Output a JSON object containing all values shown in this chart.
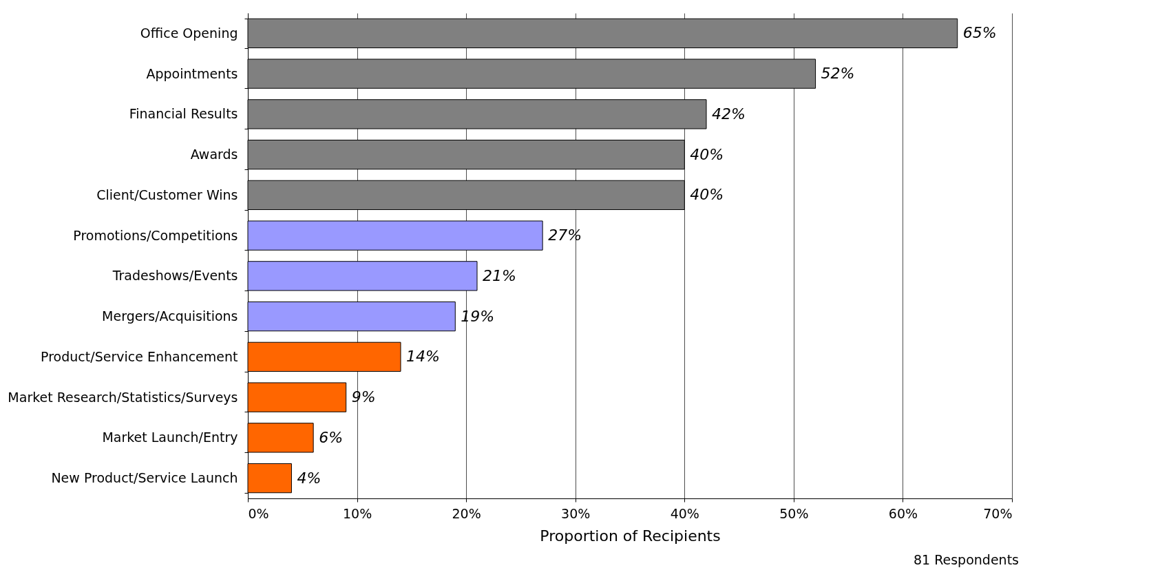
{
  "chart_data": {
    "type": "bar",
    "orientation": "horizontal",
    "xlabel": "Proportion of Recipients",
    "categories": [
      "Office Opening",
      "Appointments",
      "Financial Results",
      "Awards",
      "Client/Customer Wins",
      "Promotions/Competitions",
      "Tradeshows/Events",
      "Mergers/Acquisitions",
      "Product/Service Enhancement",
      "Market Research/Statistics/Surveys",
      "Market Launch/Entry",
      "New Product/Service Launch"
    ],
    "values": [
      65,
      52,
      42,
      40,
      40,
      27,
      21,
      19,
      14,
      9,
      6,
      4
    ],
    "value_labels": [
      "65%",
      "52%",
      "42%",
      "40%",
      "40%",
      "27%",
      "21%",
      "19%",
      "14%",
      "9%",
      "6%",
      "4%"
    ],
    "colors": [
      "#808080",
      "#808080",
      "#808080",
      "#808080",
      "#808080",
      "#9999ff",
      "#9999ff",
      "#9999ff",
      "#ff6600",
      "#ff6600",
      "#ff6600",
      "#ff6600"
    ],
    "xlim": [
      0,
      70
    ],
    "xticks": [
      {
        "value": 0,
        "label": "0%"
      },
      {
        "value": 10,
        "label": "10%"
      },
      {
        "value": 20,
        "label": "20%"
      },
      {
        "value": 30,
        "label": "30%"
      },
      {
        "value": 40,
        "label": "40%"
      },
      {
        "value": 50,
        "label": "50%"
      },
      {
        "value": 60,
        "label": "60%"
      },
      {
        "value": 70,
        "label": "70%"
      }
    ],
    "grid": "x",
    "annotations": [
      "81 Respondents"
    ]
  }
}
